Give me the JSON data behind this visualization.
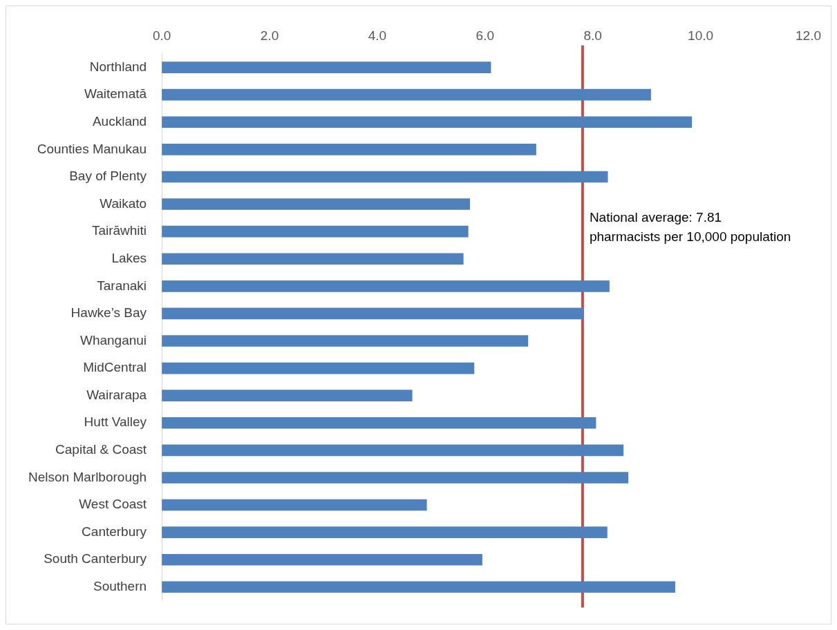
{
  "chart_data": {
    "type": "bar",
    "orientation": "horizontal",
    "categories": [
      "Northland",
      "Waitematā",
      "Auckland",
      "Counties Manukau",
      "Bay of Plenty",
      "Waikato",
      "Tairāwhiti",
      "Lakes",
      "Taranaki",
      "Hawke’s Bay",
      "Whanganui",
      "MidCentral",
      "Wairarapa",
      "Hutt Valley",
      "Capital & Coast",
      "Nelson Marlborough",
      "West Coast",
      "Canterbury",
      "South Canterbury",
      "Southern"
    ],
    "values": [
      6.11,
      9.08,
      9.84,
      6.95,
      8.28,
      5.72,
      5.69,
      5.6,
      8.31,
      7.83,
      6.8,
      5.8,
      4.65,
      8.06,
      8.57,
      8.66,
      4.92,
      8.27,
      5.95,
      9.53
    ],
    "color": "#4f81bd",
    "xlim": [
      0,
      12
    ],
    "xticks": [
      {
        "value": 0,
        "label": "0.0"
      },
      {
        "value": 2,
        "label": "2.0"
      },
      {
        "value": 4,
        "label": "4.0"
      },
      {
        "value": 6,
        "label": "6.0"
      },
      {
        "value": 8,
        "label": "8.0"
      },
      {
        "value": 10,
        "label": "10.0"
      },
      {
        "value": 12,
        "label": "12.0"
      }
    ],
    "ref_lines": [
      {
        "axis": "x",
        "value": 7.81,
        "label": "National average: 7.81\npharmacists per 10,000 population",
        "color": "#c0504d"
      }
    ],
    "grid": false,
    "legend": false
  }
}
